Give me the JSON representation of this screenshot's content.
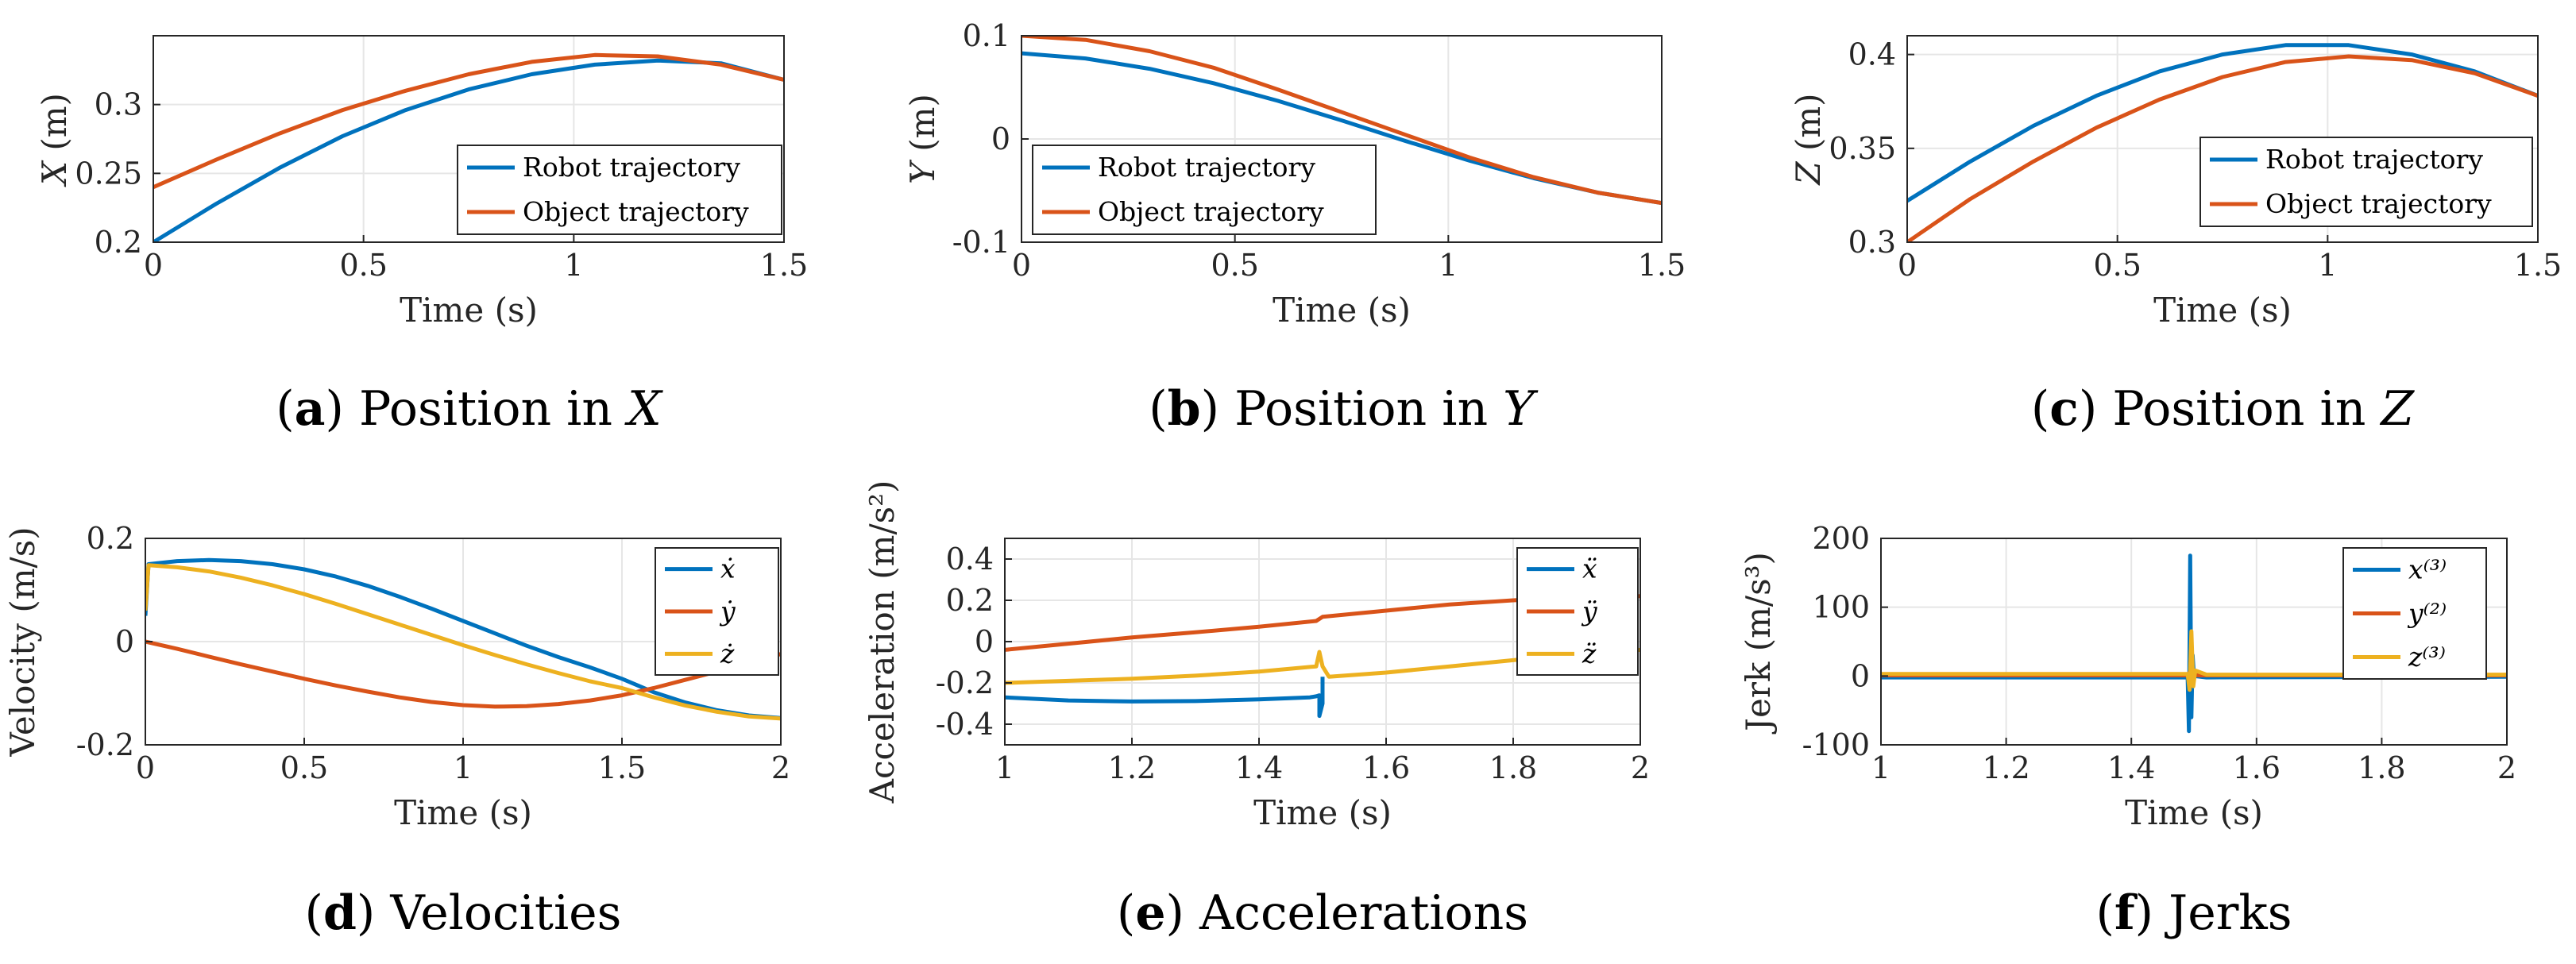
{
  "colors": {
    "blue": "#0072BD",
    "orange": "#D95319",
    "yellow": "#EDB120"
  },
  "chart_data": [
    {
      "type": "line",
      "caption": {
        "letter": "a",
        "text": "Position in ",
        "var": "X"
      },
      "xlabel": "Time (s)",
      "ylabel_var": "X",
      "ylabel_unit": "(m)",
      "xlim": [
        0,
        1.5
      ],
      "ylim": [
        0.2,
        0.35
      ],
      "xticks": [
        0,
        0.5,
        1,
        1.5
      ],
      "xtick_labels": [
        "0",
        "0.5",
        "1",
        "1.5"
      ],
      "yticks": [
        0.2,
        0.25,
        0.3
      ],
      "ytick_labels": [
        "0.2",
        "0.25",
        "0.3"
      ],
      "legend_position": "bottom-right",
      "series": [
        {
          "name": "Robot trajectory",
          "color": "#0072BD",
          "x": [
            0,
            0.15,
            0.3,
            0.45,
            0.6,
            0.75,
            0.9,
            1.05,
            1.2,
            1.35,
            1.5
          ],
          "y": [
            0.2,
            0.228,
            0.254,
            0.277,
            0.296,
            0.311,
            0.322,
            0.329,
            0.332,
            0.33,
            0.318
          ]
        },
        {
          "name": "Object trajectory",
          "color": "#D95319",
          "x": [
            0,
            0.15,
            0.3,
            0.45,
            0.6,
            0.75,
            0.9,
            1.05,
            1.2,
            1.35,
            1.5
          ],
          "y": [
            0.24,
            0.26,
            0.279,
            0.296,
            0.31,
            0.322,
            0.331,
            0.336,
            0.335,
            0.329,
            0.318
          ]
        }
      ]
    },
    {
      "type": "line",
      "caption": {
        "letter": "b",
        "text": "Position in ",
        "var": "Y"
      },
      "xlabel": "Time (s)",
      "ylabel_var": "Y",
      "ylabel_unit": "(m)",
      "xlim": [
        0,
        1.5
      ],
      "ylim": [
        -0.1,
        0.1
      ],
      "xticks": [
        0,
        0.5,
        1,
        1.5
      ],
      "xtick_labels": [
        "0",
        "0.5",
        "1",
        "1.5"
      ],
      "yticks": [
        -0.1,
        0,
        0.1
      ],
      "ytick_labels": [
        "-0.1",
        "0",
        "0.1"
      ],
      "legend_position": "bottom-left",
      "series": [
        {
          "name": "Robot trajectory",
          "color": "#0072BD",
          "x": [
            0,
            0.15,
            0.3,
            0.45,
            0.6,
            0.75,
            0.9,
            1.05,
            1.2,
            1.35,
            1.5
          ],
          "y": [
            0.083,
            0.078,
            0.068,
            0.054,
            0.037,
            0.018,
            -0.002,
            -0.021,
            -0.038,
            -0.052,
            -0.062
          ]
        },
        {
          "name": "Object trajectory",
          "color": "#D95319",
          "x": [
            0,
            0.15,
            0.3,
            0.45,
            0.6,
            0.75,
            0.9,
            1.05,
            1.2,
            1.35,
            1.5
          ],
          "y": [
            0.1,
            0.096,
            0.085,
            0.069,
            0.048,
            0.026,
            0.004,
            -0.018,
            -0.037,
            -0.052,
            -0.062
          ]
        }
      ]
    },
    {
      "type": "line",
      "caption": {
        "letter": "c",
        "text": "Position in ",
        "var": "Z"
      },
      "xlabel": "Time (s)",
      "ylabel_var": "Z",
      "ylabel_unit": "(m)",
      "xlim": [
        0,
        1.5
      ],
      "ylim": [
        0.3,
        0.41
      ],
      "xticks": [
        0,
        0.5,
        1,
        1.5
      ],
      "xtick_labels": [
        "0",
        "0.5",
        "1",
        "1.5"
      ],
      "yticks": [
        0.3,
        0.35,
        0.4
      ],
      "ytick_labels": [
        "0.3",
        "0.35",
        "0.4"
      ],
      "legend_position": "bottom-right",
      "series": [
        {
          "name": "Robot trajectory",
          "color": "#0072BD",
          "x": [
            0,
            0.15,
            0.3,
            0.45,
            0.6,
            0.75,
            0.9,
            1.05,
            1.2,
            1.35,
            1.5
          ],
          "y": [
            0.322,
            0.343,
            0.362,
            0.378,
            0.391,
            0.4,
            0.405,
            0.405,
            0.4,
            0.391,
            0.378
          ]
        },
        {
          "name": "Object trajectory",
          "color": "#D95319",
          "x": [
            0,
            0.15,
            0.3,
            0.45,
            0.6,
            0.75,
            0.9,
            1.05,
            1.2,
            1.35,
            1.5
          ],
          "y": [
            0.3,
            0.323,
            0.343,
            0.361,
            0.376,
            0.388,
            0.396,
            0.399,
            0.397,
            0.39,
            0.378
          ]
        }
      ]
    },
    {
      "type": "line",
      "caption": {
        "letter": "d",
        "text": "Velocities",
        "var": ""
      },
      "xlabel": "Time (s)",
      "ylabel": "Velocity (m/s)",
      "xlim": [
        0,
        2
      ],
      "ylim": [
        -0.2,
        0.2
      ],
      "xticks": [
        0,
        0.5,
        1,
        1.5,
        2
      ],
      "xtick_labels": [
        "0",
        "0.5",
        "1",
        "1.5",
        "2"
      ],
      "yticks": [
        -0.2,
        0,
        0.2
      ],
      "ytick_labels": [
        "-0.2",
        "0",
        "0.2"
      ],
      "legend_position": "top-right",
      "series": [
        {
          "name": "ẋ",
          "color": "#0072BD",
          "x": [
            0,
            0.01,
            0.1,
            0.2,
            0.3,
            0.4,
            0.5,
            0.6,
            0.7,
            0.8,
            0.9,
            1.0,
            1.1,
            1.2,
            1.3,
            1.4,
            1.5,
            1.6,
            1.7,
            1.8,
            1.9,
            2.0
          ],
          "y": [
            0.05,
            0.15,
            0.156,
            0.158,
            0.156,
            0.15,
            0.14,
            0.126,
            0.108,
            0.087,
            0.064,
            0.04,
            0.016,
            -0.008,
            -0.03,
            -0.05,
            -0.072,
            -0.098,
            -0.118,
            -0.133,
            -0.143,
            -0.148
          ]
        },
        {
          "name": "ẏ",
          "color": "#D95319",
          "x": [
            0,
            0.1,
            0.2,
            0.3,
            0.4,
            0.5,
            0.6,
            0.7,
            0.8,
            0.9,
            1.0,
            1.1,
            1.2,
            1.3,
            1.4,
            1.5,
            1.6,
            1.7,
            1.8,
            1.9,
            2.0
          ],
          "y": [
            0,
            -0.014,
            -0.029,
            -0.044,
            -0.058,
            -0.072,
            -0.085,
            -0.097,
            -0.108,
            -0.117,
            -0.123,
            -0.126,
            -0.125,
            -0.121,
            -0.114,
            -0.104,
            -0.09,
            -0.074,
            -0.058,
            -0.041,
            -0.024
          ]
        },
        {
          "name": "ż",
          "color": "#EDB120",
          "x": [
            0,
            0.01,
            0.1,
            0.2,
            0.3,
            0.4,
            0.5,
            0.6,
            0.7,
            0.8,
            0.9,
            1.0,
            1.1,
            1.2,
            1.3,
            1.4,
            1.5,
            1.6,
            1.7,
            1.8,
            1.9,
            2.0
          ],
          "y": [
            0.06,
            0.148,
            0.144,
            0.136,
            0.124,
            0.109,
            0.092,
            0.073,
            0.053,
            0.033,
            0.013,
            -0.007,
            -0.026,
            -0.044,
            -0.061,
            -0.077,
            -0.09,
            -0.108,
            -0.124,
            -0.136,
            -0.145,
            -0.149
          ]
        }
      ]
    },
    {
      "type": "line",
      "caption": {
        "letter": "e",
        "text": "Accelerations",
        "var": ""
      },
      "xlabel": "Time (s)",
      "ylabel": "Acceleration (m/s²)",
      "xlim": [
        1,
        2
      ],
      "ylim": [
        -0.5,
        0.5
      ],
      "xticks": [
        1,
        1.2,
        1.4,
        1.6,
        1.8,
        2
      ],
      "xtick_labels": [
        "1",
        "1.2",
        "1.4",
        "1.6",
        "1.8",
        "2"
      ],
      "yticks": [
        -0.4,
        -0.2,
        0,
        0.2,
        0.4
      ],
      "ytick_labels": [
        "-0.4",
        "-0.2",
        "0",
        "0.2",
        "0.4"
      ],
      "legend_position": "top-right",
      "series": [
        {
          "name": "ẍ",
          "color": "#0072BD",
          "x": [
            1.0,
            1.1,
            1.2,
            1.3,
            1.4,
            1.48,
            1.49,
            1.495,
            1.495,
            1.5,
            1.5
          ],
          "y": [
            -0.27,
            -0.285,
            -0.29,
            -0.288,
            -0.28,
            -0.27,
            -0.265,
            -0.26,
            -0.36,
            -0.3,
            -0.17
          ]
        },
        {
          "name": "ÿ",
          "color": "#D95319",
          "x": [
            1.0,
            1.1,
            1.2,
            1.3,
            1.4,
            1.49,
            1.5,
            1.6,
            1.7,
            1.8,
            1.9,
            2.0
          ],
          "y": [
            -0.04,
            -0.01,
            0.02,
            0.045,
            0.072,
            0.1,
            0.12,
            0.15,
            0.18,
            0.2,
            0.215,
            0.22
          ]
        },
        {
          "name": "z̈",
          "color": "#EDB120",
          "x": [
            1.0,
            1.1,
            1.2,
            1.3,
            1.4,
            1.49,
            1.495,
            1.5,
            1.51,
            1.6,
            1.7,
            1.8,
            1.9,
            2.0
          ],
          "y": [
            -0.2,
            -0.19,
            -0.18,
            -0.165,
            -0.145,
            -0.12,
            -0.05,
            -0.12,
            -0.17,
            -0.15,
            -0.12,
            -0.09,
            -0.06,
            -0.04
          ]
        }
      ]
    },
    {
      "type": "line",
      "caption": {
        "letter": "f",
        "text": "Jerks",
        "var": ""
      },
      "xlabel": "Time (s)",
      "ylabel": "Jerk (m/s³)",
      "xlim": [
        1,
        2
      ],
      "ylim": [
        -100,
        200
      ],
      "xticks": [
        1,
        1.2,
        1.4,
        1.6,
        1.8,
        2
      ],
      "xtick_labels": [
        "1",
        "1.2",
        "1.4",
        "1.6",
        "1.8",
        "2"
      ],
      "yticks": [
        -100,
        0,
        100,
        200
      ],
      "ytick_labels": [
        "-100",
        "0",
        "100",
        "200"
      ],
      "legend_position": "top-right",
      "series": [
        {
          "name": "x⁽³⁾",
          "color": "#0072BD",
          "x": [
            1.0,
            1.49,
            1.492,
            1.494,
            1.496,
            1.498,
            1.5,
            1.52,
            2.0
          ],
          "y": [
            -2,
            -2,
            -80,
            175,
            -60,
            30,
            0,
            -2,
            -1
          ]
        },
        {
          "name": "y⁽²⁾",
          "color": "#D95319",
          "x": [
            1.0,
            1.49,
            1.495,
            1.5,
            2.0
          ],
          "y": [
            1,
            1,
            8,
            1,
            1
          ]
        },
        {
          "name": "z⁽³⁾",
          "color": "#EDB120",
          "x": [
            1.0,
            1.49,
            1.493,
            1.496,
            1.499,
            1.502,
            1.52,
            2.0
          ],
          "y": [
            3,
            3,
            -20,
            65,
            -15,
            8,
            2,
            2
          ]
        }
      ]
    }
  ]
}
